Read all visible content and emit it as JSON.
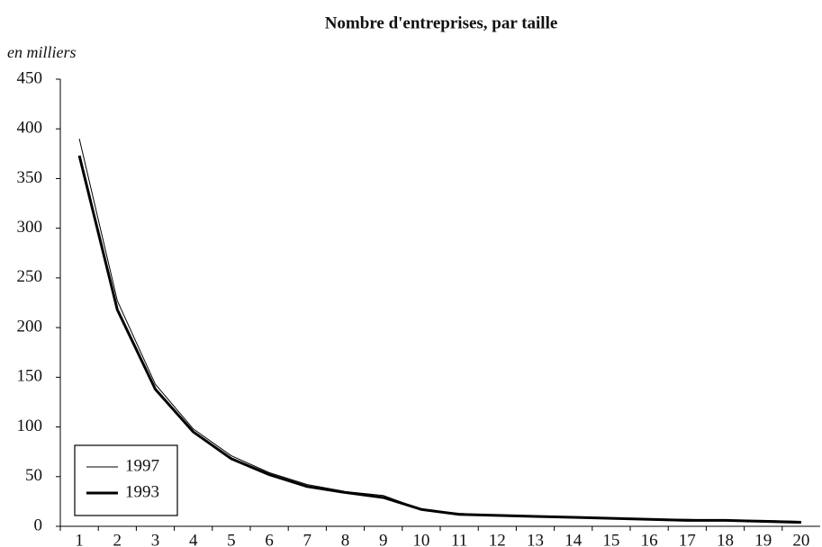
{
  "chart_data": {
    "type": "line",
    "title": "Nombre d'entreprises, par taille",
    "y_label": "en milliers",
    "categories": [
      "1",
      "2",
      "3",
      "4",
      "5",
      "6",
      "7",
      "8",
      "9",
      "10",
      "11",
      "12",
      "13",
      "14",
      "15",
      "16",
      "17",
      "18",
      "19",
      "20"
    ],
    "series": [
      {
        "name": "1997",
        "color": "#000000",
        "values": [
          390,
          227,
          143,
          98,
          71,
          54,
          42,
          35,
          31,
          17,
          13,
          11,
          10,
          9,
          8,
          7,
          7,
          6,
          6,
          5
        ]
      },
      {
        "name": "1993",
        "color": "#000000",
        "values": [
          373,
          218,
          138,
          95,
          68,
          52,
          40,
          34,
          29,
          17,
          12,
          11,
          10,
          9,
          8,
          7,
          6,
          6,
          5,
          4
        ]
      }
    ],
    "ylim": [
      0,
      450
    ],
    "yticks": [
      0,
      50,
      100,
      150,
      200,
      250,
      300,
      350,
      400,
      450
    ],
    "grid": false,
    "legend": "lower left"
  }
}
